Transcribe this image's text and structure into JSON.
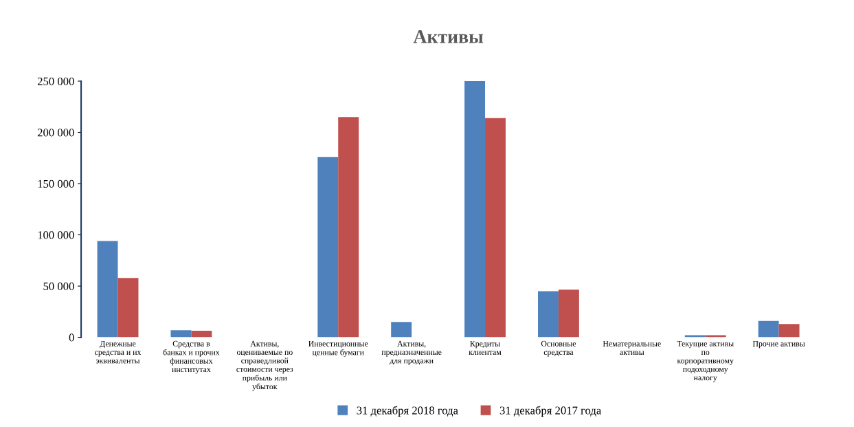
{
  "chart_data": {
    "type": "bar",
    "title": "Активы",
    "categories": [
      "Денежные средства и их эквиваленты",
      "Средства в банках и прочих финансовых институтах",
      "Активы, оцениваемые по справедливой стоимости через прибыль или убыток",
      "Инвестиционные ценные бумаги",
      "Активы, предназначенные для продажи",
      "Кредиты клиентам",
      "Основные средства",
      "Нематериальные активы",
      "Текущие активы по корпоративному подоходному налогу",
      "Прочие активы"
    ],
    "series": [
      {
        "name": "31 декабря 2018 года",
        "color": "#4f81bd",
        "values": [
          94000,
          7000,
          null,
          176000,
          15000,
          250000,
          45000,
          null,
          2000,
          16000
        ]
      },
      {
        "name": "31 декабря 2017 года",
        "color": "#c0504d",
        "values": [
          58000,
          6500,
          null,
          215000,
          null,
          214000,
          46500,
          null,
          2000,
          13000
        ]
      }
    ],
    "ylim": [
      0,
      250000
    ],
    "yticks": [
      {
        "value": 0,
        "label": "0"
      },
      {
        "value": 50000,
        "label": "50 000"
      },
      {
        "value": 100000,
        "label": "100 000"
      },
      {
        "value": 150000,
        "label": "150 000"
      },
      {
        "value": 200000,
        "label": "200 000"
      },
      {
        "value": 250000,
        "label": "250 000"
      }
    ],
    "grid": false,
    "legend": "bottom"
  }
}
